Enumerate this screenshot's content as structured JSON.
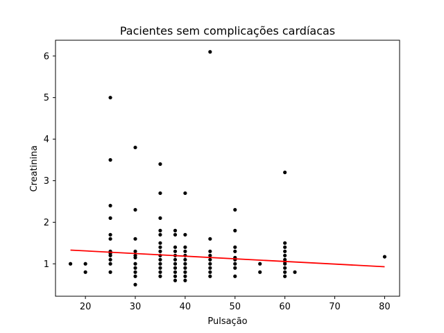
{
  "chart_data": {
    "type": "scatter",
    "title": "Pacientes sem complicações cardíacas",
    "xlabel": "Pulsação",
    "ylabel": "Creatinina",
    "xlim": [
      14,
      83
    ],
    "ylim": [
      0.22,
      6.38
    ],
    "xticks": [
      20,
      30,
      40,
      50,
      60,
      70,
      80
    ],
    "yticks": [
      1,
      2,
      3,
      4,
      5,
      6
    ],
    "grid": false,
    "legend": "none",
    "series": [
      {
        "kind": "points",
        "color": "#000000",
        "points": [
          [
            17,
            1.0
          ],
          [
            20,
            1.0
          ],
          [
            20,
            0.8
          ],
          [
            25,
            5.0
          ],
          [
            25,
            3.5
          ],
          [
            25,
            2.4
          ],
          [
            25,
            2.1
          ],
          [
            25,
            1.7
          ],
          [
            25,
            1.6
          ],
          [
            25,
            1.3
          ],
          [
            25,
            1.25
          ],
          [
            25,
            1.2
          ],
          [
            25,
            1.1
          ],
          [
            25,
            1.0
          ],
          [
            25,
            0.8
          ],
          [
            30,
            3.8
          ],
          [
            30,
            2.3
          ],
          [
            30,
            1.6
          ],
          [
            30,
            1.3
          ],
          [
            30,
            1.2
          ],
          [
            30,
            1.15
          ],
          [
            30,
            1.0
          ],
          [
            30,
            0.9
          ],
          [
            30,
            0.8
          ],
          [
            30,
            0.7
          ],
          [
            30,
            0.5
          ],
          [
            35,
            3.4
          ],
          [
            35,
            2.7
          ],
          [
            35,
            2.1
          ],
          [
            35,
            1.8
          ],
          [
            35,
            1.7
          ],
          [
            35,
            1.5
          ],
          [
            35,
            1.4
          ],
          [
            35,
            1.3
          ],
          [
            35,
            1.2
          ],
          [
            35,
            1.1
          ],
          [
            35,
            1.0
          ],
          [
            35,
            0.9
          ],
          [
            35,
            0.8
          ],
          [
            35,
            0.7
          ],
          [
            38,
            1.8
          ],
          [
            38,
            1.7
          ],
          [
            38,
            1.4
          ],
          [
            38,
            1.3
          ],
          [
            38,
            1.2
          ],
          [
            38,
            1.1
          ],
          [
            38,
            1.0
          ],
          [
            38,
            0.9
          ],
          [
            38,
            0.8
          ],
          [
            38,
            0.7
          ],
          [
            38,
            0.6
          ],
          [
            40,
            2.7
          ],
          [
            40,
            1.7
          ],
          [
            40,
            1.4
          ],
          [
            40,
            1.3
          ],
          [
            40,
            1.2
          ],
          [
            40,
            1.1
          ],
          [
            40,
            1.0
          ],
          [
            40,
            0.9
          ],
          [
            40,
            0.8
          ],
          [
            40,
            0.7
          ],
          [
            40,
            0.6
          ],
          [
            45,
            6.1
          ],
          [
            45,
            1.6
          ],
          [
            45,
            1.3
          ],
          [
            45,
            1.2
          ],
          [
            45,
            1.1
          ],
          [
            45,
            1.0
          ],
          [
            45,
            0.9
          ],
          [
            45,
            0.8
          ],
          [
            45,
            0.7
          ],
          [
            50,
            2.3
          ],
          [
            50,
            1.8
          ],
          [
            50,
            1.4
          ],
          [
            50,
            1.3
          ],
          [
            50,
            1.15
          ],
          [
            50,
            1.1
          ],
          [
            50,
            1.0
          ],
          [
            50,
            0.9
          ],
          [
            50,
            0.7
          ],
          [
            55,
            1.0
          ],
          [
            55,
            0.8
          ],
          [
            60,
            3.2
          ],
          [
            60,
            1.5
          ],
          [
            60,
            1.4
          ],
          [
            60,
            1.3
          ],
          [
            60,
            1.2
          ],
          [
            60,
            1.1
          ],
          [
            60,
            1.05
          ],
          [
            60,
            1.0
          ],
          [
            60,
            0.9
          ],
          [
            60,
            0.8
          ],
          [
            60,
            0.7
          ],
          [
            62,
            0.8
          ],
          [
            80,
            1.17
          ]
        ]
      },
      {
        "kind": "line",
        "color": "#ff0000",
        "points": [
          [
            17,
            1.33
          ],
          [
            80,
            0.93
          ]
        ]
      }
    ]
  }
}
